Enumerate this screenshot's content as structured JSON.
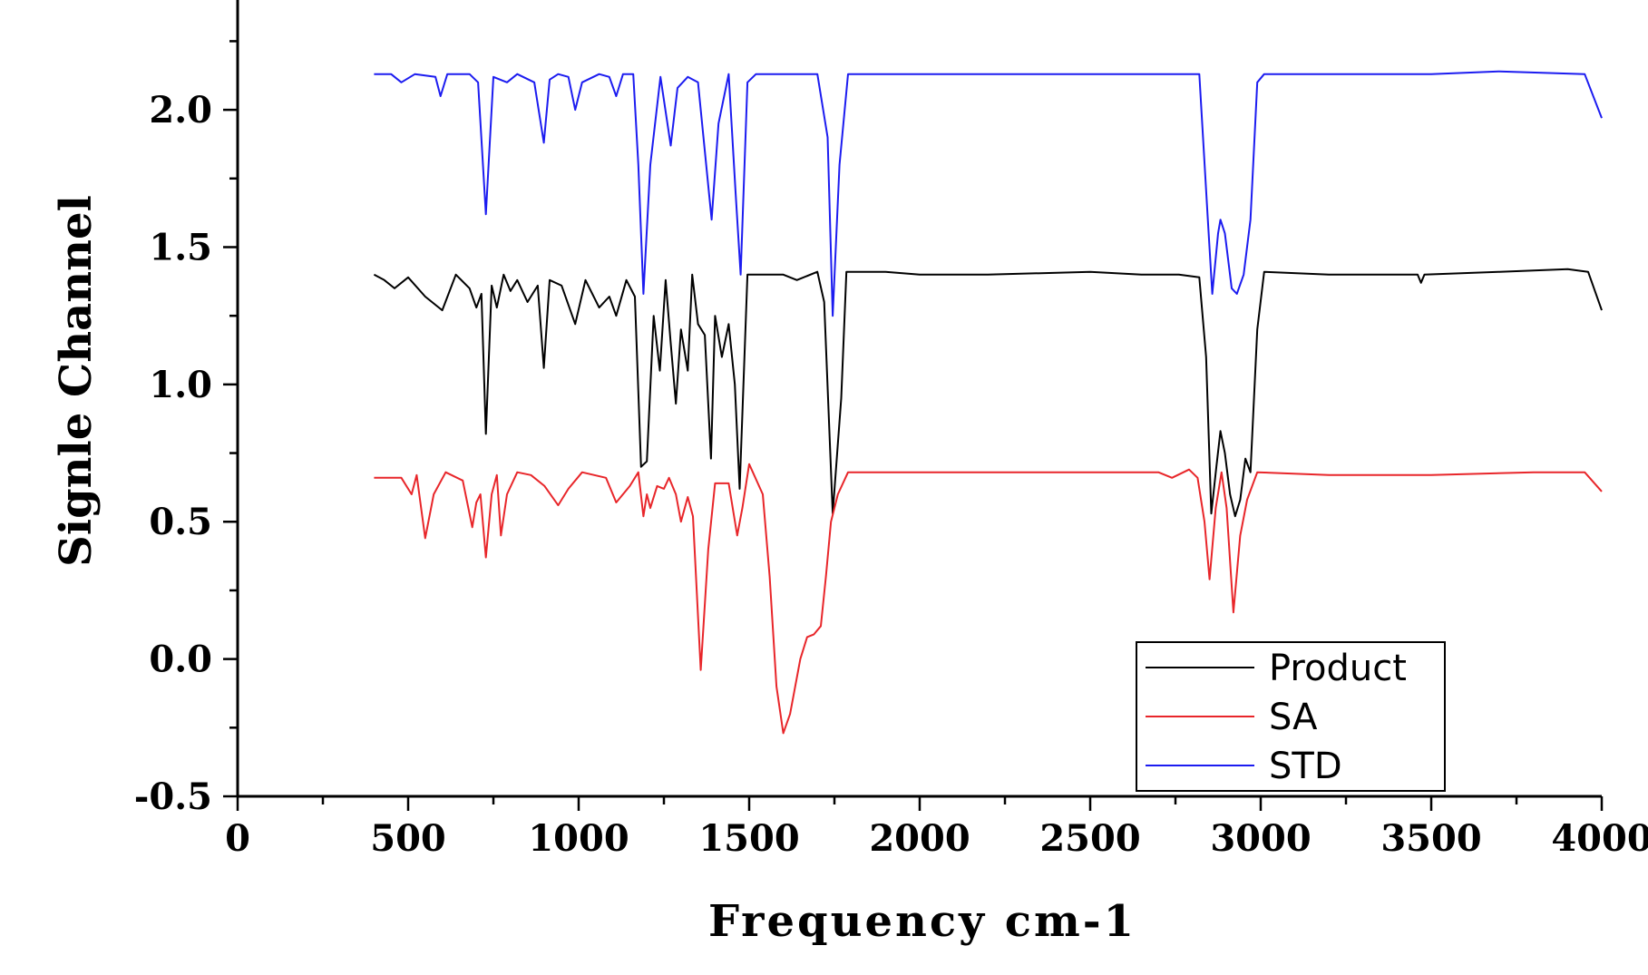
{
  "chart_data": {
    "type": "line",
    "title": "",
    "xlabel": "Frequency cm-1",
    "ylabel": "Signle Channel",
    "xlim": [
      0,
      4000
    ],
    "ylim": [
      -0.5,
      2.4
    ],
    "x_ticks": [
      0,
      500,
      1000,
      1500,
      2000,
      2500,
      3000,
      3500,
      4000
    ],
    "x_tick_labels": [
      "0",
      "500",
      "1000",
      "1500",
      "2000",
      "2500",
      "3000",
      "3500",
      "4000"
    ],
    "y_ticks": [
      -0.5,
      0.0,
      0.5,
      1.0,
      1.5,
      2.0
    ],
    "y_tick_labels": [
      "-0.5",
      "0.0",
      "0.5",
      "1.0",
      "1.5",
      "2.0"
    ],
    "grid": false,
    "legend_position": "bottom-right",
    "series": [
      {
        "name": "Product",
        "color": "#000000",
        "points": [
          [
            400,
            1.4
          ],
          [
            430,
            1.38
          ],
          [
            460,
            1.35
          ],
          [
            500,
            1.39
          ],
          [
            550,
            1.32
          ],
          [
            600,
            1.27
          ],
          [
            640,
            1.4
          ],
          [
            680,
            1.35
          ],
          [
            700,
            1.28
          ],
          [
            715,
            1.33
          ],
          [
            728,
            0.82
          ],
          [
            745,
            1.36
          ],
          [
            760,
            1.28
          ],
          [
            780,
            1.4
          ],
          [
            800,
            1.34
          ],
          [
            820,
            1.38
          ],
          [
            850,
            1.3
          ],
          [
            880,
            1.36
          ],
          [
            898,
            1.06
          ],
          [
            915,
            1.38
          ],
          [
            950,
            1.36
          ],
          [
            990,
            1.22
          ],
          [
            1020,
            1.38
          ],
          [
            1060,
            1.28
          ],
          [
            1090,
            1.32
          ],
          [
            1110,
            1.25
          ],
          [
            1140,
            1.38
          ],
          [
            1165,
            1.32
          ],
          [
            1183,
            0.7
          ],
          [
            1200,
            0.72
          ],
          [
            1220,
            1.25
          ],
          [
            1238,
            1.05
          ],
          [
            1255,
            1.38
          ],
          [
            1270,
            1.15
          ],
          [
            1285,
            0.93
          ],
          [
            1300,
            1.2
          ],
          [
            1320,
            1.05
          ],
          [
            1333,
            1.4
          ],
          [
            1350,
            1.22
          ],
          [
            1370,
            1.18
          ],
          [
            1388,
            0.73
          ],
          [
            1400,
            1.25
          ],
          [
            1420,
            1.1
          ],
          [
            1440,
            1.22
          ],
          [
            1458,
            1.0
          ],
          [
            1472,
            0.62
          ],
          [
            1495,
            1.4
          ],
          [
            1540,
            1.4
          ],
          [
            1600,
            1.4
          ],
          [
            1640,
            1.38
          ],
          [
            1700,
            1.41
          ],
          [
            1720,
            1.3
          ],
          [
            1745,
            0.53
          ],
          [
            1770,
            0.95
          ],
          [
            1785,
            1.41
          ],
          [
            1900,
            1.41
          ],
          [
            2000,
            1.4
          ],
          [
            2200,
            1.4
          ],
          [
            2500,
            1.41
          ],
          [
            2650,
            1.4
          ],
          [
            2760,
            1.4
          ],
          [
            2820,
            1.39
          ],
          [
            2840,
            1.1
          ],
          [
            2855,
            0.53
          ],
          [
            2870,
            0.7
          ],
          [
            2882,
            0.83
          ],
          [
            2895,
            0.75
          ],
          [
            2910,
            0.6
          ],
          [
            2925,
            0.52
          ],
          [
            2940,
            0.58
          ],
          [
            2955,
            0.73
          ],
          [
            2970,
            0.68
          ],
          [
            2990,
            1.2
          ],
          [
            3010,
            1.41
          ],
          [
            3200,
            1.4
          ],
          [
            3460,
            1.4
          ],
          [
            3470,
            1.37
          ],
          [
            3480,
            1.4
          ],
          [
            3700,
            1.41
          ],
          [
            3900,
            1.42
          ],
          [
            3960,
            1.41
          ],
          [
            4000,
            1.27
          ]
        ]
      },
      {
        "name": "SA",
        "color": "#e8262a",
        "points": [
          [
            400,
            0.66
          ],
          [
            480,
            0.66
          ],
          [
            510,
            0.6
          ],
          [
            525,
            0.67
          ],
          [
            550,
            0.44
          ],
          [
            575,
            0.6
          ],
          [
            610,
            0.68
          ],
          [
            660,
            0.65
          ],
          [
            688,
            0.48
          ],
          [
            700,
            0.57
          ],
          [
            712,
            0.6
          ],
          [
            728,
            0.37
          ],
          [
            745,
            0.6
          ],
          [
            760,
            0.67
          ],
          [
            772,
            0.45
          ],
          [
            790,
            0.6
          ],
          [
            820,
            0.68
          ],
          [
            860,
            0.67
          ],
          [
            900,
            0.63
          ],
          [
            940,
            0.56
          ],
          [
            970,
            0.62
          ],
          [
            1010,
            0.68
          ],
          [
            1080,
            0.66
          ],
          [
            1110,
            0.57
          ],
          [
            1150,
            0.63
          ],
          [
            1175,
            0.68
          ],
          [
            1190,
            0.52
          ],
          [
            1200,
            0.6
          ],
          [
            1210,
            0.55
          ],
          [
            1230,
            0.63
          ],
          [
            1250,
            0.62
          ],
          [
            1265,
            0.66
          ],
          [
            1285,
            0.6
          ],
          [
            1300,
            0.5
          ],
          [
            1320,
            0.59
          ],
          [
            1335,
            0.52
          ],
          [
            1358,
            -0.04
          ],
          [
            1380,
            0.4
          ],
          [
            1400,
            0.64
          ],
          [
            1440,
            0.64
          ],
          [
            1465,
            0.45
          ],
          [
            1480,
            0.55
          ],
          [
            1500,
            0.71
          ],
          [
            1540,
            0.6
          ],
          [
            1560,
            0.3
          ],
          [
            1580,
            -0.1
          ],
          [
            1600,
            -0.27
          ],
          [
            1620,
            -0.2
          ],
          [
            1650,
            0.0
          ],
          [
            1670,
            0.08
          ],
          [
            1690,
            0.09
          ],
          [
            1710,
            0.12
          ],
          [
            1725,
            0.3
          ],
          [
            1740,
            0.5
          ],
          [
            1760,
            0.6
          ],
          [
            1790,
            0.68
          ],
          [
            2000,
            0.68
          ],
          [
            2500,
            0.68
          ],
          [
            2700,
            0.68
          ],
          [
            2740,
            0.66
          ],
          [
            2790,
            0.69
          ],
          [
            2815,
            0.66
          ],
          [
            2835,
            0.5
          ],
          [
            2850,
            0.29
          ],
          [
            2868,
            0.55
          ],
          [
            2885,
            0.68
          ],
          [
            2900,
            0.55
          ],
          [
            2920,
            0.17
          ],
          [
            2940,
            0.45
          ],
          [
            2960,
            0.58
          ],
          [
            2990,
            0.68
          ],
          [
            3200,
            0.67
          ],
          [
            3500,
            0.67
          ],
          [
            3800,
            0.68
          ],
          [
            3950,
            0.68
          ],
          [
            4000,
            0.61
          ]
        ]
      },
      {
        "name": "STD",
        "color": "#1c1cf0",
        "points": [
          [
            400,
            2.13
          ],
          [
            450,
            2.13
          ],
          [
            480,
            2.1
          ],
          [
            520,
            2.13
          ],
          [
            580,
            2.12
          ],
          [
            595,
            2.05
          ],
          [
            615,
            2.13
          ],
          [
            680,
            2.13
          ],
          [
            705,
            2.1
          ],
          [
            728,
            1.62
          ],
          [
            750,
            2.12
          ],
          [
            790,
            2.1
          ],
          [
            820,
            2.13
          ],
          [
            870,
            2.1
          ],
          [
            898,
            1.88
          ],
          [
            915,
            2.11
          ],
          [
            940,
            2.13
          ],
          [
            970,
            2.12
          ],
          [
            990,
            2.0
          ],
          [
            1010,
            2.1
          ],
          [
            1060,
            2.13
          ],
          [
            1090,
            2.12
          ],
          [
            1110,
            2.05
          ],
          [
            1130,
            2.13
          ],
          [
            1160,
            2.13
          ],
          [
            1175,
            1.8
          ],
          [
            1190,
            1.33
          ],
          [
            1210,
            1.8
          ],
          [
            1240,
            2.12
          ],
          [
            1270,
            1.87
          ],
          [
            1290,
            2.08
          ],
          [
            1320,
            2.12
          ],
          [
            1350,
            2.1
          ],
          [
            1370,
            1.85
          ],
          [
            1390,
            1.6
          ],
          [
            1410,
            1.95
          ],
          [
            1440,
            2.13
          ],
          [
            1460,
            1.7
          ],
          [
            1475,
            1.4
          ],
          [
            1495,
            2.1
          ],
          [
            1520,
            2.13
          ],
          [
            1700,
            2.13
          ],
          [
            1730,
            1.9
          ],
          [
            1745,
            1.25
          ],
          [
            1765,
            1.8
          ],
          [
            1790,
            2.13
          ],
          [
            2000,
            2.13
          ],
          [
            2500,
            2.13
          ],
          [
            2820,
            2.13
          ],
          [
            2845,
            1.6
          ],
          [
            2858,
            1.33
          ],
          [
            2875,
            1.55
          ],
          [
            2882,
            1.6
          ],
          [
            2895,
            1.55
          ],
          [
            2915,
            1.35
          ],
          [
            2930,
            1.33
          ],
          [
            2950,
            1.4
          ],
          [
            2970,
            1.6
          ],
          [
            2990,
            2.1
          ],
          [
            3010,
            2.13
          ],
          [
            3500,
            2.13
          ],
          [
            3700,
            2.14
          ],
          [
            3950,
            2.13
          ],
          [
            4000,
            1.97
          ]
        ]
      }
    ]
  }
}
